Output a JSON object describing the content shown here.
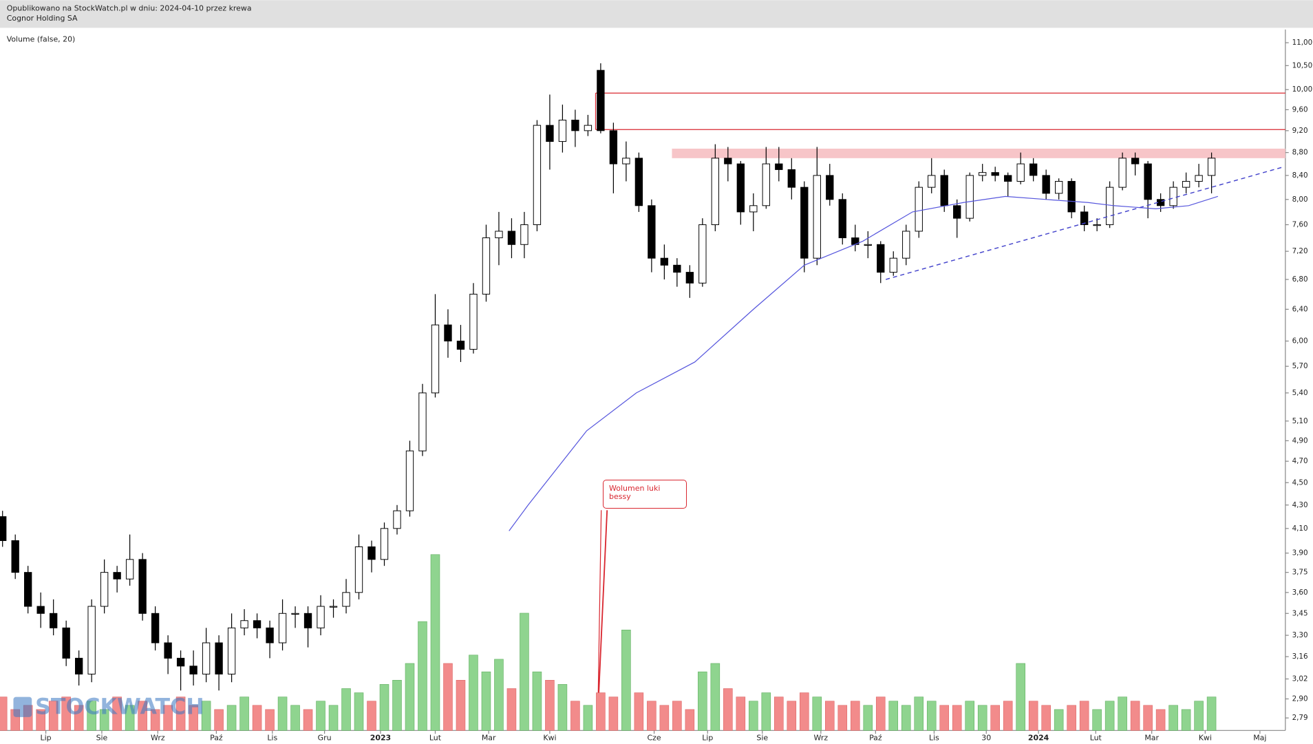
{
  "header": {
    "line1": "Opublikowano na StockWatch.pl w dniu: 2024-04-10 przez krewa",
    "line2": "Cognor Holding SA"
  },
  "chart_data": {
    "type": "candlestick",
    "indicator_label": "Volume (false, 20)",
    "watermark": "STOCKWATCH",
    "log": true,
    "ylim": [
      2.72,
      11.3
    ],
    "xlim": [
      -0.2,
      100.8
    ],
    "yticks": [
      {
        "value": 11,
        "label": "11,00"
      },
      {
        "value": 10.5,
        "label": "10,50"
      },
      {
        "value": 10,
        "label": "10,00"
      },
      {
        "value": 9.6,
        "label": "9,60"
      },
      {
        "value": 9.2,
        "label": "9,20"
      },
      {
        "value": 8.8,
        "label": "8,80"
      },
      {
        "value": 8.4,
        "label": "8,40"
      },
      {
        "value": 8,
        "label": "8,00"
      },
      {
        "value": 7.6,
        "label": "7,60"
      },
      {
        "value": 7.2,
        "label": "7,20"
      },
      {
        "value": 6.8,
        "label": "6,80"
      },
      {
        "value": 6.4,
        "label": "6,40"
      },
      {
        "value": 6,
        "label": "6,00"
      },
      {
        "value": 5.7,
        "label": "5,70"
      },
      {
        "value": 5.4,
        "label": "5,40"
      },
      {
        "value": 5.1,
        "label": "5,10"
      },
      {
        "value": 4.9,
        "label": "4,90"
      },
      {
        "value": 4.7,
        "label": "4,70"
      },
      {
        "value": 4.5,
        "label": "4,50"
      },
      {
        "value": 4.3,
        "label": "4,30"
      },
      {
        "value": 4.1,
        "label": "4,10"
      },
      {
        "value": 3.9,
        "label": "3,90"
      },
      {
        "value": 3.75,
        "label": "3,75"
      },
      {
        "value": 3.6,
        "label": "3,60"
      },
      {
        "value": 3.45,
        "label": "3,45"
      },
      {
        "value": 3.3,
        "label": "3,30"
      },
      {
        "value": 3.16,
        "label": "3,16"
      },
      {
        "value": 3.02,
        "label": "3,02"
      },
      {
        "value": 2.9,
        "label": "2,90"
      },
      {
        "value": 2.79,
        "label": "2,79"
      }
    ],
    "xticks": [
      {
        "value": 3.4,
        "label": "Lip"
      },
      {
        "value": 7.8,
        "label": "Sie"
      },
      {
        "value": 12.2,
        "label": "Wrz"
      },
      {
        "value": 16.8,
        "label": "Paź"
      },
      {
        "value": 21.2,
        "label": "Lis"
      },
      {
        "value": 25.3,
        "label": "Gru"
      },
      {
        "value": 29.7,
        "label": "2023",
        "bold": true
      },
      {
        "value": 34.0,
        "label": "Lut"
      },
      {
        "value": 38.2,
        "label": "Mar"
      },
      {
        "value": 43.0,
        "label": "Kwi"
      },
      {
        "value": 51.2,
        "label": "Cze"
      },
      {
        "value": 55.4,
        "label": "Lip"
      },
      {
        "value": 59.7,
        "label": "Sie"
      },
      {
        "value": 64.3,
        "label": "Wrz"
      },
      {
        "value": 68.6,
        "label": "Paź"
      },
      {
        "value": 73.2,
        "label": "Lis"
      },
      {
        "value": 77.3,
        "label": "30"
      },
      {
        "value": 81.4,
        "label": "2024",
        "bold": true
      },
      {
        "value": 85.9,
        "label": "Lut"
      },
      {
        "value": 90.3,
        "label": "Mar"
      },
      {
        "value": 94.5,
        "label": "Kwi"
      },
      {
        "value": 98.8,
        "label": "Maj"
      }
    ],
    "open": [
      4.2,
      4.0,
      3.75,
      3.5,
      3.45,
      3.35,
      3.15,
      3.05,
      3.5,
      3.75,
      3.7,
      3.85,
      3.45,
      3.25,
      3.15,
      3.1,
      3.05,
      3.25,
      3.05,
      3.35,
      3.4,
      3.35,
      3.25,
      3.45,
      3.45,
      3.35,
      3.5,
      3.5,
      3.6,
      3.95,
      3.85,
      4.1,
      4.25,
      4.8,
      5.4,
      6.2,
      6.0,
      5.9,
      6.6,
      7.4,
      7.5,
      7.3,
      7.6,
      9.3,
      9.0,
      9.4,
      9.2,
      10.4,
      9.2,
      8.6,
      8.7,
      7.9,
      7.1,
      7.0,
      6.9,
      6.75,
      7.6,
      8.7,
      8.6,
      7.8,
      7.9,
      8.6,
      8.5,
      8.2,
      7.1,
      8.4,
      8.0,
      7.4,
      7.3,
      7.3,
      6.9,
      7.1,
      7.5,
      8.2,
      8.4,
      7.9,
      7.7,
      8.4,
      8.45,
      8.4,
      8.3,
      8.6,
      8.4,
      8.1,
      8.3,
      7.8,
      7.6,
      7.6,
      8.2,
      8.7,
      8.6,
      8.0,
      7.9,
      8.2,
      8.3,
      8.4
    ],
    "high": [
      4.25,
      4.05,
      3.8,
      3.6,
      3.55,
      3.4,
      3.2,
      3.55,
      3.85,
      3.8,
      4.05,
      3.9,
      3.5,
      3.3,
      3.2,
      3.2,
      3.35,
      3.3,
      3.45,
      3.48,
      3.45,
      3.4,
      3.55,
      3.5,
      3.5,
      3.58,
      3.55,
      3.7,
      4.05,
      4.0,
      4.15,
      4.3,
      4.9,
      5.5,
      6.6,
      6.4,
      6.2,
      6.75,
      7.6,
      7.8,
      7.7,
      7.8,
      9.4,
      9.9,
      9.7,
      9.6,
      9.5,
      10.55,
      9.35,
      9.0,
      8.8,
      8.0,
      7.3,
      7.1,
      7.0,
      7.7,
      8.95,
      8.9,
      8.65,
      8.1,
      8.9,
      8.9,
      8.7,
      8.3,
      8.9,
      8.6,
      8.1,
      7.6,
      7.5,
      7.35,
      7.2,
      7.6,
      8.3,
      8.7,
      8.5,
      8.0,
      8.45,
      8.6,
      8.55,
      8.45,
      8.8,
      8.7,
      8.5,
      8.35,
      8.35,
      7.9,
      7.7,
      8.3,
      8.8,
      8.8,
      8.65,
      8.1,
      8.3,
      8.45,
      8.6,
      8.8
    ],
    "low": [
      3.95,
      3.7,
      3.45,
      3.35,
      3.3,
      3.1,
      2.98,
      3.0,
      3.45,
      3.6,
      3.65,
      3.4,
      3.2,
      3.05,
      2.95,
      2.98,
      3.0,
      2.95,
      3.0,
      3.3,
      3.28,
      3.15,
      3.2,
      3.35,
      3.22,
      3.3,
      3.42,
      3.45,
      3.55,
      3.75,
      3.8,
      4.05,
      4.2,
      4.75,
      5.35,
      5.8,
      5.75,
      5.85,
      6.5,
      7.0,
      7.1,
      7.1,
      7.5,
      8.5,
      8.8,
      8.9,
      9.1,
      9.15,
      8.1,
      8.3,
      7.8,
      6.9,
      6.8,
      6.7,
      6.55,
      6.7,
      7.5,
      8.3,
      7.6,
      7.5,
      7.85,
      8.3,
      8.0,
      6.9,
      7.0,
      7.9,
      7.3,
      7.2,
      7.1,
      6.75,
      6.85,
      7.0,
      7.4,
      8.1,
      7.8,
      7.4,
      7.65,
      8.3,
      8.3,
      8.05,
      8.25,
      8.3,
      8.0,
      8.0,
      7.7,
      7.5,
      7.5,
      7.55,
      8.15,
      8.4,
      7.7,
      7.8,
      7.85,
      8.1,
      8.2,
      8.1
    ],
    "close": [
      4.0,
      3.75,
      3.5,
      3.45,
      3.35,
      3.15,
      3.05,
      3.5,
      3.75,
      3.7,
      3.85,
      3.45,
      3.25,
      3.15,
      3.1,
      3.05,
      3.25,
      3.05,
      3.35,
      3.4,
      3.35,
      3.25,
      3.45,
      3.45,
      3.35,
      3.5,
      3.5,
      3.6,
      3.95,
      3.85,
      4.1,
      4.25,
      4.8,
      5.4,
      6.2,
      6.0,
      5.9,
      6.6,
      7.4,
      7.5,
      7.3,
      7.6,
      9.3,
      9.0,
      9.4,
      9.2,
      9.3,
      9.2,
      8.6,
      8.7,
      7.9,
      7.1,
      7.0,
      6.9,
      6.75,
      7.6,
      8.7,
      8.6,
      7.8,
      7.9,
      8.6,
      8.5,
      8.2,
      7.1,
      8.4,
      8.0,
      7.4,
      7.3,
      7.3,
      6.9,
      7.1,
      7.5,
      8.2,
      8.4,
      7.9,
      7.7,
      8.4,
      8.45,
      8.4,
      8.3,
      8.6,
      8.4,
      8.1,
      8.3,
      7.8,
      7.6,
      7.6,
      8.2,
      8.7,
      8.6,
      8.0,
      7.9,
      8.2,
      8.3,
      8.4,
      8.7
    ],
    "volume": [
      40,
      25,
      30,
      25,
      35,
      40,
      30,
      35,
      25,
      40,
      30,
      35,
      25,
      30,
      40,
      30,
      35,
      25,
      30,
      40,
      30,
      25,
      40,
      30,
      25,
      35,
      30,
      50,
      45,
      35,
      55,
      60,
      80,
      130,
      210,
      80,
      60,
      90,
      70,
      85,
      50,
      140,
      70,
      60,
      55,
      35,
      30,
      45,
      40,
      120,
      45,
      35,
      30,
      35,
      25,
      70,
      80,
      50,
      40,
      35,
      45,
      40,
      35,
      45,
      40,
      35,
      30,
      35,
      30,
      40,
      35,
      30,
      40,
      35,
      30,
      30,
      35,
      30,
      30,
      35,
      80,
      35,
      30,
      25,
      30,
      35,
      25,
      35,
      40,
      35,
      30,
      25,
      30,
      25,
      35,
      40
    ],
    "volume_colors": [
      "#8fd48f",
      "#f28b8b"
    ],
    "ma": {
      "color": "#5555dd",
      "x": [
        39.8,
        41.3,
        45.9,
        49.8,
        54.4,
        59.0,
        63.0,
        67.6,
        71.5,
        75.5,
        78.8,
        82.0,
        85.3,
        87.3,
        90.6,
        93.2,
        95.5
      ],
      "y": [
        4.08,
        4.3,
        5.0,
        5.4,
        5.75,
        6.4,
        7.0,
        7.35,
        7.8,
        7.95,
        8.05,
        8.0,
        7.95,
        7.9,
        7.85,
        7.9,
        8.05
      ]
    },
    "levels": [
      {
        "y": 9.93,
        "x_start": 46.6,
        "color": "#d9262f"
      },
      {
        "y": 9.22,
        "x_start": 46.6,
        "color": "#d9262f"
      }
    ],
    "band": {
      "y": [
        8.7,
        8.87
      ],
      "x_start": 52.6,
      "color": "#f7c5c8"
    },
    "trendline": {
      "x": [
        69.4,
        100.7
      ],
      "y": [
        6.8,
        8.55
      ],
      "color": "#4444cc"
    },
    "callout": {
      "text": "Wolumen luki bessy"
    }
  }
}
